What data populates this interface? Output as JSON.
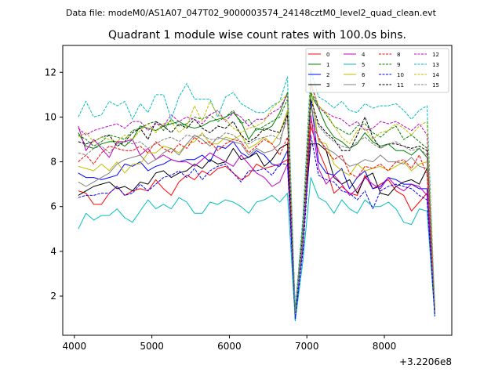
{
  "chart_data": {
    "type": "line",
    "suptitle": "Data file: modeM0/AS1A07_047T02_9000003574_24148cztM0_level2_quad_clean.evt",
    "title": "Quadrant 1 module wise count rates with 100.0s bins.",
    "xlabel": "",
    "ylabel": "",
    "x_offset_label": "+3.2206e8",
    "xlim": [
      3850,
      8870
    ],
    "ylim": [
      0.25,
      13.2
    ],
    "xticks": [
      4000,
      5000,
      6000,
      7000,
      8000
    ],
    "xtick_labels": [
      "4000",
      "5000",
      "6000",
      "7000",
      "8000"
    ],
    "yticks": [
      2,
      4,
      6,
      8,
      10,
      12
    ],
    "ytick_labels": [
      "2",
      "4",
      "6",
      "8",
      "10",
      "12"
    ],
    "legend_position": "top-right",
    "legend_columns": 4,
    "x": [
      4050,
      4150,
      4250,
      4350,
      4450,
      4550,
      4650,
      4750,
      4850,
      4950,
      5050,
      5150,
      5250,
      5350,
      5450,
      5550,
      5650,
      5750,
      5850,
      5950,
      6050,
      6150,
      6250,
      6350,
      6450,
      6550,
      6650,
      6750,
      6850,
      6950,
      7050,
      7150,
      7250,
      7350,
      7450,
      7550,
      7650,
      7750,
      7850,
      7950,
      8050,
      8150,
      8250,
      8350,
      8450,
      8550,
      8650
    ],
    "series": [
      {
        "name": "0",
        "color": "#ff0000",
        "dash": "solid",
        "values": [
          6.7,
          6.6,
          6.1,
          6.1,
          6.6,
          6.9,
          6.5,
          6.7,
          6.8,
          6.7,
          7.2,
          6.8,
          6.5,
          7.1,
          7.4,
          7.2,
          7.6,
          7.4,
          7.7,
          7.8,
          7.5,
          7.2,
          7.4,
          7.9,
          7.7,
          7.8,
          7.9,
          8.1,
          1.1,
          4.5,
          9.6,
          8.5,
          7.7,
          6.6,
          6.9,
          6.6,
          6.5,
          7.4,
          6.8,
          7.0,
          7.2,
          6.7,
          6.5,
          5.8,
          6.2,
          6.6,
          1.3
        ]
      },
      {
        "name": "1",
        "color": "#008000",
        "dash": "solid",
        "values": [
          9.3,
          8.7,
          8.6,
          8.8,
          8.9,
          8.9,
          8.7,
          9.0,
          9.6,
          9.5,
          9.4,
          9.6,
          9.7,
          9.8,
          9.6,
          9.5,
          9.6,
          9.8,
          9.9,
          10.0,
          10.2,
          9.8,
          9.0,
          9.5,
          9.4,
          9.6,
          10.2,
          11.1,
          1.2,
          5.0,
          11.0,
          10.4,
          9.6,
          9.1,
          8.9,
          8.6,
          8.8,
          9.3,
          8.9,
          8.7,
          8.8,
          8.5,
          8.5,
          8.3,
          8.6,
          8.2,
          1.5
        ]
      },
      {
        "name": "2",
        "color": "#0000ff",
        "dash": "solid",
        "values": [
          7.5,
          7.3,
          7.3,
          7.2,
          7.3,
          7.4,
          7.9,
          7.8,
          8.0,
          7.6,
          7.8,
          7.9,
          8.1,
          8.0,
          8.1,
          8.1,
          8.3,
          8.0,
          8.7,
          8.6,
          8.9,
          8.4,
          8.2,
          8.5,
          8.3,
          7.9,
          7.8,
          8.5,
          0.9,
          4.5,
          10.8,
          8.0,
          7.5,
          7.4,
          7.7,
          6.8,
          7.3,
          7.6,
          6.8,
          6.9,
          7.3,
          7.2,
          7.0,
          7.0,
          6.8,
          6.8,
          1.1
        ]
      },
      {
        "name": "3",
        "color": "#000000",
        "dash": "solid",
        "values": [
          6.5,
          6.7,
          6.9,
          7.0,
          7.1,
          6.8,
          6.9,
          6.7,
          7.1,
          7.0,
          7.5,
          7.6,
          7.3,
          7.5,
          7.6,
          7.9,
          7.7,
          8.1,
          7.9,
          8.0,
          8.6,
          8.1,
          8.2,
          8.4,
          7.8,
          8.1,
          8.6,
          8.8,
          1.2,
          4.8,
          8.8,
          8.8,
          8.5,
          7.3,
          7.0,
          7.2,
          6.6,
          7.3,
          7.5,
          6.6,
          6.5,
          6.9,
          7.1,
          7.2,
          7.0,
          7.7,
          1.2
        ]
      },
      {
        "name": "4",
        "color": "#c000c0",
        "dash": "solid",
        "values": [
          9.6,
          8.5,
          9.0,
          8.6,
          8.2,
          8.9,
          8.9,
          9.0,
          8.3,
          8.6,
          8.1,
          8.3,
          8.1,
          8.0,
          8.0,
          7.8,
          8.1,
          8.4,
          8.2,
          8.0,
          7.8,
          8.3,
          7.9,
          7.5,
          7.3,
          6.9,
          7.1,
          7.9,
          1.3,
          4.2,
          10.1,
          7.7,
          7.0,
          7.4,
          7.0,
          6.5,
          6.8,
          7.3,
          7.0,
          6.8,
          7.3,
          6.9,
          6.7,
          7.0,
          6.9,
          6.5,
          1.3
        ]
      },
      {
        "name": "5",
        "color": "#00bfbf",
        "dash": "solid",
        "values": [
          5.0,
          5.7,
          5.4,
          5.6,
          5.6,
          5.9,
          5.5,
          5.3,
          5.8,
          6.3,
          5.9,
          6.1,
          5.9,
          6.4,
          6.2,
          5.7,
          5.7,
          6.2,
          6.1,
          6.3,
          6.2,
          6.0,
          5.7,
          6.2,
          6.3,
          6.5,
          6.2,
          6.6,
          0.9,
          3.6,
          7.3,
          6.4,
          6.2,
          5.7,
          6.3,
          5.9,
          5.7,
          6.3,
          6.0,
          6.0,
          6.2,
          5.9,
          5.3,
          5.2,
          5.9,
          5.8,
          1.1
        ]
      },
      {
        "name": "6",
        "color": "#bfbf00",
        "dash": "solid",
        "values": [
          7.8,
          7.7,
          7.6,
          7.9,
          7.6,
          8.0,
          7.5,
          7.9,
          7.9,
          8.4,
          8.4,
          8.7,
          8.6,
          8.4,
          8.8,
          8.9,
          9.3,
          8.8,
          8.8,
          9.1,
          9.0,
          9.2,
          8.6,
          8.8,
          9.1,
          8.8,
          9.3,
          10.3,
          1.2,
          4.6,
          11.3,
          8.9,
          8.8,
          7.9,
          7.6,
          7.4,
          7.9,
          7.6,
          7.7,
          7.8,
          7.6,
          7.8,
          8.0,
          7.6,
          7.9,
          8.0,
          1.4
        ]
      },
      {
        "name": "7",
        "color": "#808080",
        "dash": "solid",
        "values": [
          7.1,
          6.9,
          7.1,
          7.3,
          7.5,
          7.9,
          8.1,
          8.2,
          8.3,
          7.9,
          8.1,
          8.4,
          8.6,
          8.3,
          8.8,
          9.2,
          9.0,
          8.7,
          9.1,
          9.0,
          8.9,
          8.8,
          8.3,
          8.6,
          8.4,
          8.5,
          8.8,
          10.2,
          1.1,
          4.7,
          10.5,
          9.0,
          8.6,
          8.4,
          8.1,
          7.8,
          7.9,
          8.1,
          8.0,
          8.3,
          8.0,
          8.0,
          7.9,
          8.2,
          7.8,
          7.7,
          1.3
        ]
      },
      {
        "name": "8",
        "color": "#ff0000",
        "dash": "dashed",
        "values": [
          8.0,
          8.3,
          7.9,
          8.4,
          8.7,
          8.6,
          8.5,
          8.5,
          8.7,
          8.4,
          8.9,
          8.6,
          8.4,
          8.8,
          8.6,
          9.1,
          8.8,
          8.9,
          8.5,
          8.8,
          9.0,
          8.9,
          8.4,
          8.7,
          9.0,
          8.8,
          8.3,
          9.1,
          1.3,
          5.0,
          9.8,
          9.1,
          8.5,
          8.1,
          8.3,
          7.5,
          7.3,
          7.8,
          7.7,
          7.9,
          7.6,
          8.0,
          8.1,
          7.7,
          8.3,
          7.4,
          1.4
        ]
      },
      {
        "name": "9",
        "color": "#008000",
        "dash": "dashed",
        "values": [
          9.2,
          9.0,
          8.7,
          8.9,
          9.2,
          9.1,
          9.0,
          9.4,
          9.5,
          9.7,
          9.8,
          9.4,
          9.9,
          9.6,
          9.7,
          10.0,
          9.9,
          10.1,
          9.8,
          10.0,
          10.3,
          9.7,
          9.9,
          9.4,
          9.6,
          9.8,
          10.0,
          10.8,
          1.3,
          5.2,
          11.1,
          10.5,
          10.1,
          9.6,
          9.4,
          9.2,
          9.6,
          9.7,
          9.3,
          9.1,
          9.4,
          9.6,
          9.0,
          9.2,
          8.9,
          8.6,
          1.5
        ]
      },
      {
        "name": "10",
        "color": "#0000ff",
        "dash": "dashed",
        "values": [
          6.4,
          6.5,
          6.5,
          6.6,
          6.6,
          6.9,
          6.5,
          6.6,
          7.0,
          6.7,
          7.0,
          7.3,
          7.4,
          7.6,
          7.3,
          7.7,
          7.2,
          7.6,
          7.8,
          7.9,
          7.5,
          7.1,
          7.6,
          7.6,
          7.7,
          7.4,
          7.9,
          7.9,
          1.0,
          4.0,
          9.2,
          7.4,
          7.2,
          7.1,
          6.7,
          6.6,
          6.3,
          6.7,
          5.9,
          6.7,
          6.9,
          7.0,
          6.9,
          6.8,
          6.5,
          6.3,
          1.1
        ]
      },
      {
        "name": "11",
        "color": "#000000",
        "dash": "dashed",
        "values": [
          8.9,
          8.8,
          8.9,
          9.1,
          9.2,
          8.7,
          8.9,
          9.3,
          9.5,
          9.0,
          9.8,
          9.6,
          9.3,
          9.7,
          9.5,
          9.9,
          9.5,
          9.3,
          9.6,
          9.5,
          9.8,
          9.2,
          8.9,
          9.1,
          9.5,
          9.4,
          9.3,
          10.1,
          1.2,
          4.9,
          10.8,
          9.7,
          9.3,
          9.0,
          8.5,
          8.5,
          9.2,
          10.0,
          9.1,
          8.6,
          8.8,
          8.8,
          8.7,
          8.6,
          8.7,
          8.5,
          1.4
        ]
      },
      {
        "name": "12",
        "color": "#c000c0",
        "dash": "dashed",
        "values": [
          9.5,
          9.2,
          9.4,
          9.5,
          9.6,
          9.7,
          9.5,
          9.8,
          9.8,
          9.4,
          9.7,
          9.6,
          10.1,
          9.8,
          10.0,
          9.9,
          9.7,
          10.1,
          10.3,
          9.8,
          10.2,
          10.0,
          9.6,
          9.9,
          9.9,
          10.2,
          10.4,
          11.0,
          1.4,
          5.5,
          11.5,
          10.4,
          10.2,
          10.0,
          9.9,
          9.6,
          9.8,
          9.4,
          9.5,
          9.8,
          9.7,
          9.8,
          9.6,
          9.4,
          9.7,
          9.2,
          1.5
        ]
      },
      {
        "name": "13",
        "color": "#00bfbf",
        "dash": "dashed",
        "values": [
          10.0,
          10.7,
          10.0,
          10.1,
          10.7,
          10.5,
          10.7,
          9.9,
          10.6,
          10.2,
          11.0,
          11.0,
          9.9,
          10.9,
          11.5,
          10.8,
          10.8,
          10.8,
          10.0,
          10.9,
          11.1,
          10.6,
          10.4,
          10.2,
          10.2,
          10.5,
          10.7,
          11.8,
          1.3,
          5.6,
          12.1,
          10.9,
          10.7,
          10.4,
          10.7,
          10.3,
          10.2,
          10.6,
          10.4,
          10.5,
          10.5,
          10.6,
          10.3,
          9.9,
          10.3,
          10.5,
          1.6
        ]
      },
      {
        "name": "14",
        "color": "#bfbf00",
        "dash": "dashed",
        "values": [
          9.1,
          9.3,
          8.9,
          9.1,
          9.0,
          8.9,
          9.2,
          9.0,
          9.4,
          9.7,
          9.3,
          9.7,
          9.8,
          9.3,
          9.6,
          10.5,
          9.8,
          10.7,
          10.1,
          9.9,
          9.5,
          9.3,
          9.5,
          9.6,
          9.8,
          10.4,
          10.7,
          11.0,
          1.2,
          5.0,
          11.6,
          10.5,
          10.2,
          9.6,
          9.1,
          8.8,
          9.4,
          9.5,
          9.0,
          9.3,
          9.4,
          9.7,
          9.5,
          9.2,
          9.6,
          9.8,
          1.5
        ]
      },
      {
        "name": "15",
        "color": "#808080",
        "dash": "dashed",
        "values": [
          8.4,
          8.3,
          8.6,
          8.7,
          8.4,
          8.8,
          8.9,
          8.8,
          8.9,
          8.6,
          8.8,
          9.0,
          9.1,
          8.9,
          9.2,
          9.1,
          9.2,
          9.0,
          9.0,
          9.3,
          9.2,
          8.9,
          8.8,
          9.0,
          9.1,
          9.2,
          9.0,
          9.9,
          1.2,
          4.8,
          10.5,
          9.6,
          9.2,
          8.9,
          8.7,
          8.6,
          8.9,
          9.1,
          8.8,
          8.6,
          8.8,
          8.9,
          8.7,
          8.5,
          8.6,
          8.3,
          1.4
        ]
      }
    ]
  }
}
